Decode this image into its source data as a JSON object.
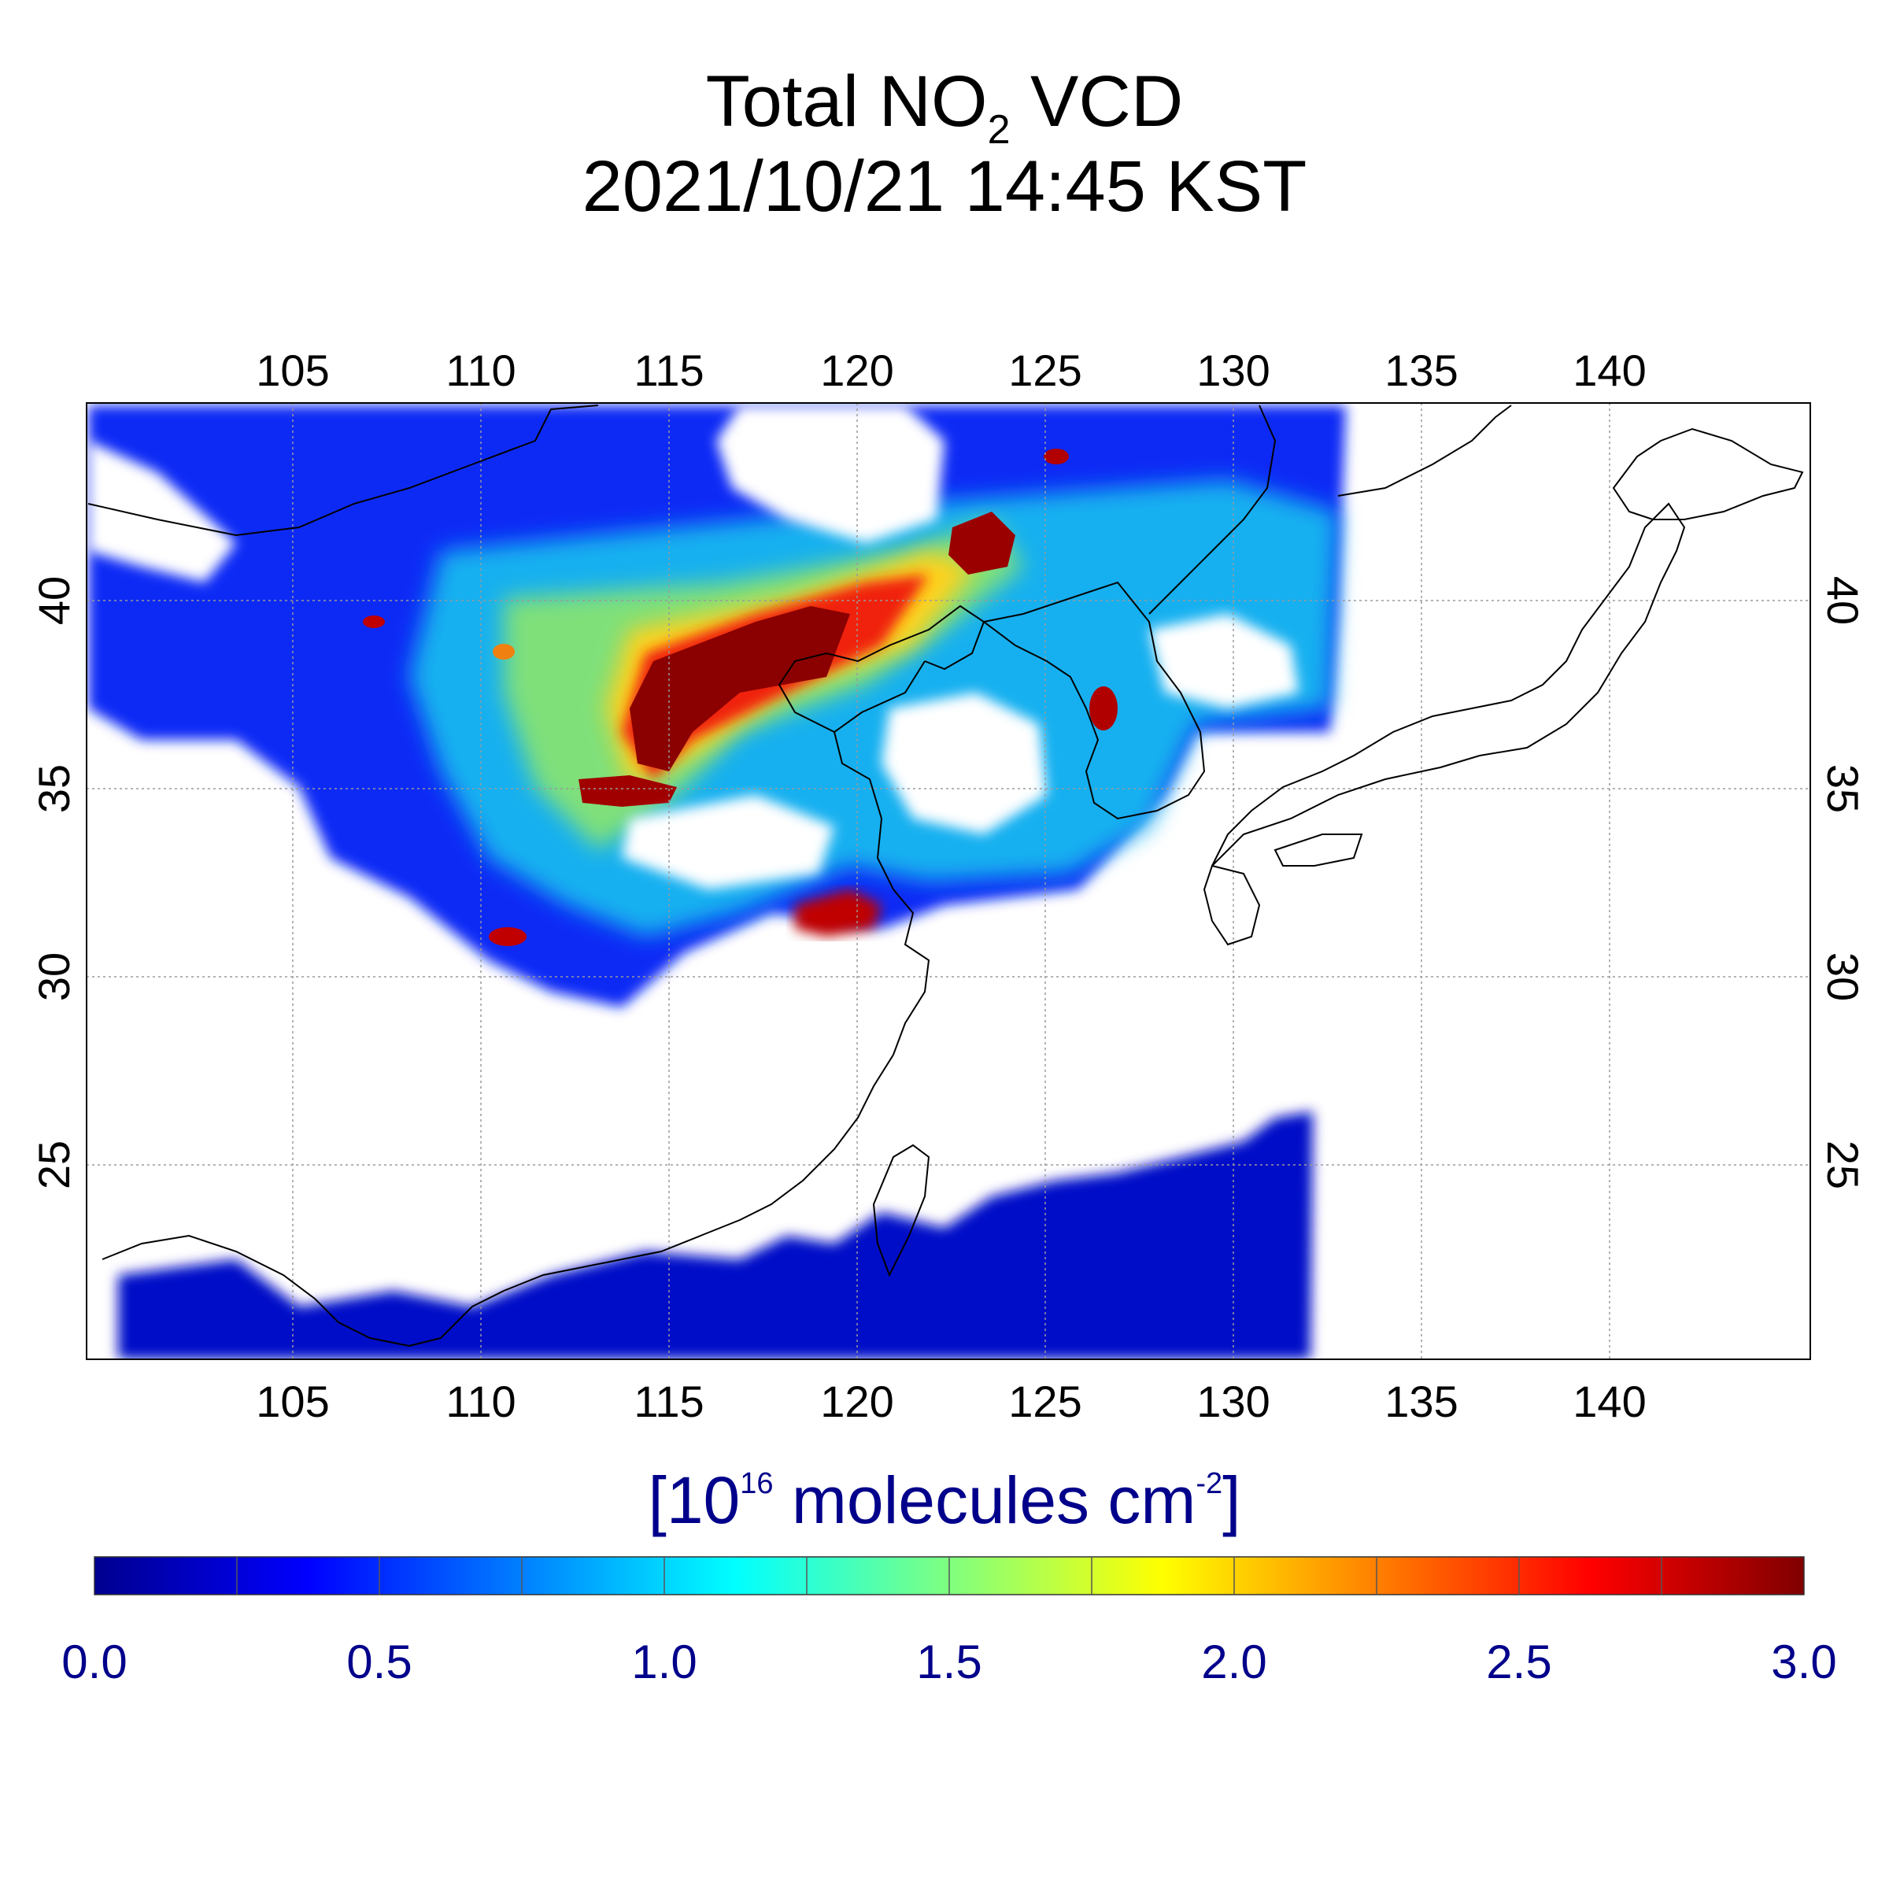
{
  "title": {
    "line1_prefix": "Total NO",
    "line1_sub": "2",
    "line1_suffix": " VCD",
    "line2": "2021/10/21 14:45 KST"
  },
  "map": {
    "lon_ticks": [
      "105",
      "110",
      "115",
      "120",
      "125",
      "130",
      "135",
      "140"
    ],
    "lat_ticks": [
      "40",
      "35",
      "30",
      "25"
    ],
    "lon_range": [
      99.5,
      145.5
    ],
    "lat_range": [
      20,
      45.5
    ],
    "grid": true
  },
  "colorbar": {
    "unit_prefix": "[10",
    "unit_exp": "16",
    "unit_mid": " molecules cm",
    "unit_exp2": "-2",
    "unit_suffix": "]",
    "ticks": [
      "0.0",
      "0.5",
      "1.0",
      "1.5",
      "2.0",
      "2.5",
      "3.0"
    ],
    "range": [
      0,
      3.0
    ],
    "colormap": "jet"
  }
}
